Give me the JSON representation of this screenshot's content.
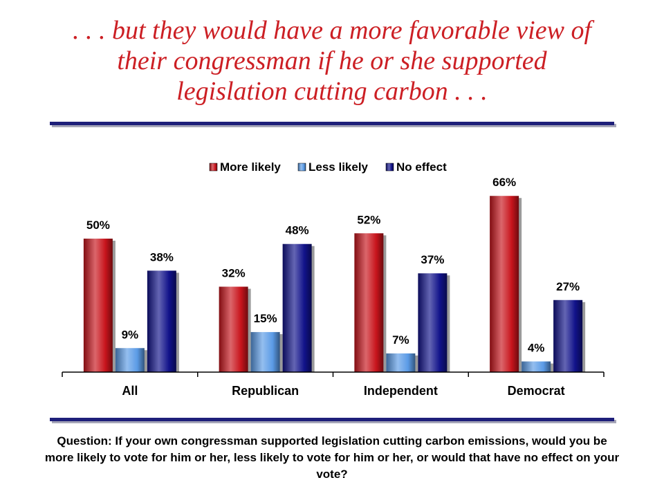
{
  "slide": {
    "title_lines": [
      ". . . but they would have a more favorable view of",
      "their congressman if he or she supported",
      "legislation cutting carbon . . ."
    ],
    "question": "Question: If your own congressman supported legislation cutting carbon emissions, would you be more likely to vote for him or her, less likely to vote for him or her, or would that have no effect on your vote?"
  },
  "colors": {
    "title": "#cc1f24",
    "rule": "#1e1f7a"
  },
  "chart_data": {
    "type": "bar",
    "categories": [
      "All",
      "Republican",
      "Independent",
      "Democrat"
    ],
    "series": [
      {
        "name": "More likely",
        "values": [
          50,
          32,
          52,
          66
        ],
        "labels": [
          "50%",
          "32%",
          "52%",
          "66%"
        ],
        "color": "#c8141c"
      },
      {
        "name": "Less likely",
        "values": [
          9,
          15,
          7,
          4
        ],
        "labels": [
          "9%",
          "15%",
          "7%",
          "4%"
        ],
        "color": "#5b9be6"
      },
      {
        "name": "No effect",
        "values": [
          38,
          48,
          37,
          27
        ],
        "labels": [
          "38%",
          "48%",
          "37%",
          "27%"
        ],
        "color": "#11128a"
      }
    ],
    "ylim": [
      0,
      70
    ],
    "legend": "top",
    "grid": false
  }
}
